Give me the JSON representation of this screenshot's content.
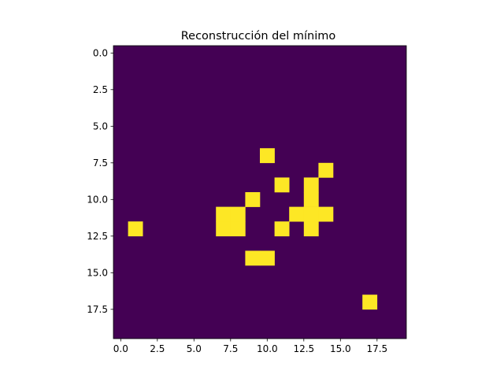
{
  "chart_data": {
    "type": "heatmap",
    "title": "Reconstrucción del mínimo",
    "xlabel": "",
    "ylabel": "",
    "rows": 20,
    "cols": 20,
    "xlim": [
      -0.5,
      19.5
    ],
    "ylim": [
      19.5,
      -0.5
    ],
    "x_ticks": [
      "0.0",
      "2.5",
      "5.0",
      "7.5",
      "10.0",
      "12.5",
      "15.0",
      "17.5"
    ],
    "y_ticks": [
      "0.0",
      "2.5",
      "5.0",
      "7.5",
      "10.0",
      "12.5",
      "15.0",
      "17.5"
    ],
    "tick_values": [
      0,
      2.5,
      5,
      7.5,
      10,
      12.5,
      15,
      17.5
    ],
    "background_value": 0,
    "active_value": 1,
    "colors": {
      "low": "#440154",
      "high": "#fde725"
    },
    "active_cells": [
      [
        10,
        7
      ],
      [
        14,
        8
      ],
      [
        11,
        9
      ],
      [
        13,
        9
      ],
      [
        9,
        10
      ],
      [
        13,
        10
      ],
      [
        7,
        11
      ],
      [
        8,
        11
      ],
      [
        12,
        11
      ],
      [
        13,
        11
      ],
      [
        14,
        11
      ],
      [
        1,
        12
      ],
      [
        7,
        12
      ],
      [
        8,
        12
      ],
      [
        11,
        12
      ],
      [
        13,
        12
      ],
      [
        9,
        14
      ],
      [
        10,
        14
      ],
      [
        17,
        17
      ]
    ],
    "grid": false,
    "legend": "none"
  }
}
